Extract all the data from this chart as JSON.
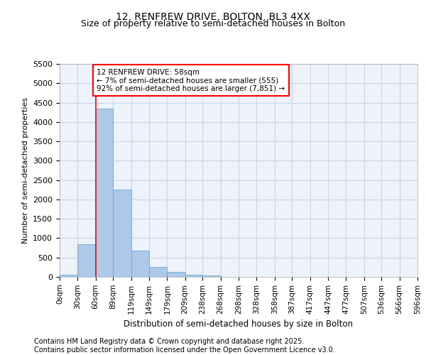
{
  "title": "12, RENFREW DRIVE, BOLTON, BL3 4XX",
  "subtitle": "Size of property relative to semi-detached houses in Bolton",
  "xlabel": "Distribution of semi-detached houses by size in Bolton",
  "ylabel": "Number of semi-detached properties",
  "bar_color": "#aec8e8",
  "bar_edge_color": "#6aaad4",
  "background_color": "#eef2fa",
  "annotation_text": "12 RENFREW DRIVE: 58sqm\n← 7% of semi-detached houses are smaller (555)\n92% of semi-detached houses are larger (7,851) →",
  "annotation_box_color": "white",
  "annotation_box_edge": "red",
  "vline_x": 60,
  "vline_color": "red",
  "bin_edges": [
    0,
    30,
    60,
    89,
    119,
    149,
    179,
    209,
    238,
    268,
    298,
    328,
    358,
    387,
    417,
    447,
    477,
    507,
    536,
    566,
    596
  ],
  "bin_counts": [
    50,
    840,
    4350,
    2250,
    680,
    250,
    120,
    60,
    30,
    0,
    0,
    0,
    0,
    0,
    0,
    0,
    0,
    0,
    0,
    0
  ],
  "ylim": [
    0,
    5500
  ],
  "yticks": [
    0,
    500,
    1000,
    1500,
    2000,
    2500,
    3000,
    3500,
    4000,
    4500,
    5000,
    5500
  ],
  "footer_text": "Contains HM Land Registry data © Crown copyright and database right 2025.\nContains public sector information licensed under the Open Government Licence v3.0.",
  "grid_color": "#c8d4e8",
  "title_fontsize": 10,
  "subtitle_fontsize": 9,
  "tick_label_fontsize": 7.5,
  "footer_fontsize": 7,
  "ylabel_fontsize": 8,
  "xlabel_fontsize": 8.5
}
